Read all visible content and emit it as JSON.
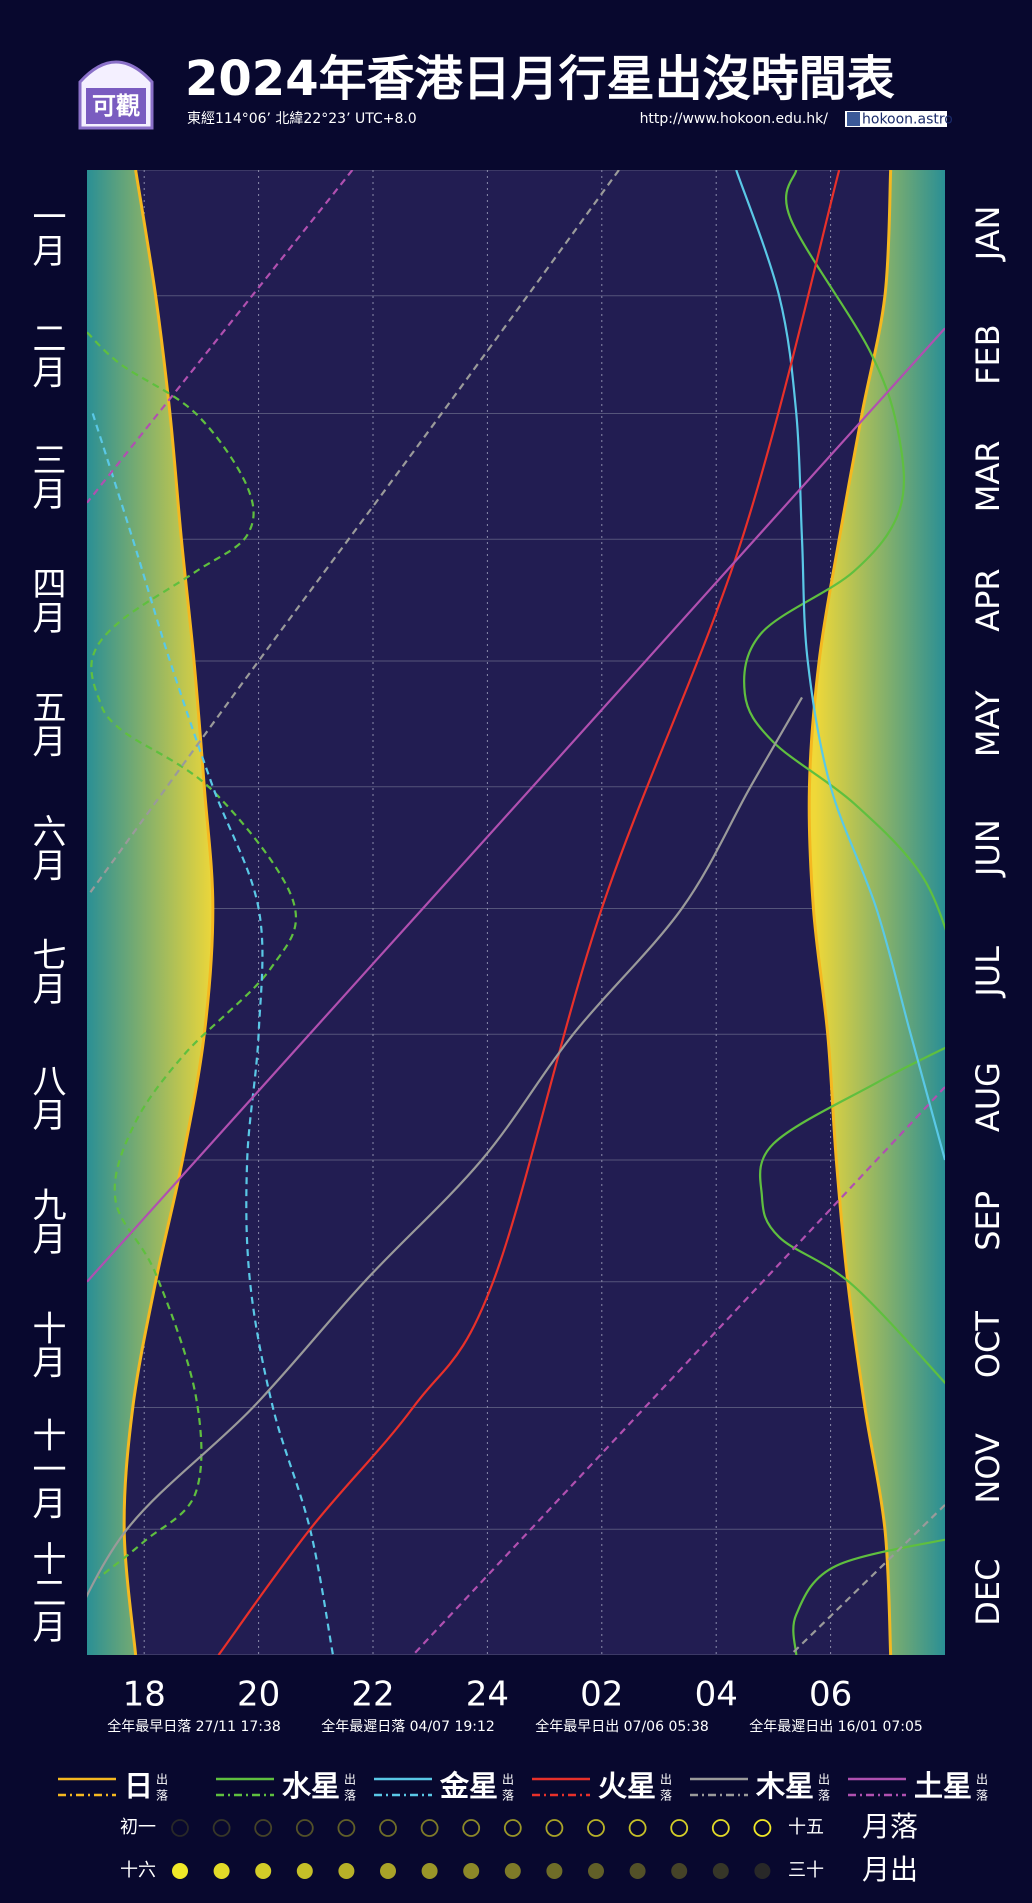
{
  "chart_data": {
    "type": "rise-set",
    "title": "2024年香港日月行星出沒時間表",
    "subtitle": "東經114°06’ 北緯22°23’ UTC+8.0",
    "url": "http://www.hokoon.edu.hk/",
    "facebook": "hokoon.astro",
    "logo_text": "可觀",
    "months_zh": [
      "一月",
      "二月",
      "三月",
      "四月",
      "五月",
      "六月",
      "七月",
      "八月",
      "九月",
      "十月",
      "十一月",
      "十二月"
    ],
    "months_en": [
      "JAN",
      "FEB",
      "MAR",
      "APR",
      "MAY",
      "JUN",
      "JUL",
      "AUG",
      "SEP",
      "OCT",
      "NOV",
      "DEC"
    ],
    "xlim": [
      17,
      32
    ],
    "xticks": [
      18,
      20,
      22,
      24,
      {
        "value": 26,
        "label": "02"
      },
      {
        "value": 28,
        "label": "04"
      },
      {
        "value": 30,
        "label": "06"
      }
    ],
    "ylim": [
      0,
      366
    ],
    "yticks": [
      0,
      31,
      60,
      91,
      121,
      152,
      182,
      213,
      244,
      274,
      305,
      335,
      366
    ],
    "notes": [
      "全年最早日落 27/11 17:38",
      "全年最遲日落 04/07 19:12",
      "全年最早日出 07/06 05:38",
      "全年最遲日出 16/01 07:05"
    ],
    "rise_label": "出",
    "set_label": "落",
    "series": [
      {
        "name": "日",
        "color": "#f5b820",
        "rise": {
          "days": [
            0,
            31,
            60,
            91,
            121,
            152,
            182,
            213,
            244,
            274,
            305,
            335,
            366
          ],
          "hours": [
            31.05,
            30.95,
            30.55,
            30.15,
            29.8,
            29.63,
            29.7,
            29.95,
            30.1,
            30.3,
            30.6,
            30.95,
            31.05
          ]
        },
        "set": {
          "days": [
            0,
            31,
            60,
            91,
            121,
            152,
            182,
            213,
            244,
            274,
            305,
            335,
            366
          ],
          "hours": [
            17.85,
            18.2,
            18.45,
            18.65,
            18.87,
            19.05,
            19.2,
            19.05,
            18.67,
            18.2,
            17.8,
            17.65,
            17.85
          ]
        }
      },
      {
        "name": "水星",
        "color": "#5fbf3f",
        "rise": {
          "days": [
            0,
            12,
            45,
            66,
            84,
            99,
            114,
            129,
            141,
            156,
            174,
            195,
            205,
            215,
            225,
            240,
            253,
            263,
            275,
            302,
            320,
            337,
            344,
            356,
            366
          ],
          "hours": [
            29.4,
            29.3,
            30.7,
            31.2,
            31.2,
            30.4,
            28.8,
            28.5,
            29,
            30.4,
            31.6,
            32.2,
            null,
            32.2,
            30.8,
            29.0,
            28.8,
            29.1,
            30.4,
            32.2,
            null,
            32.2,
            30.1,
            29.4,
            29.4
          ]
        },
        "set": {
          "days": [
            40,
            48,
            60,
            78,
            90,
            99,
            111,
            120,
            130,
            138,
            153,
            180,
            197,
            218,
            236,
            254,
            272,
            302,
            326,
            338,
            347
          ],
          "hours": [
            17.0,
            17.6,
            18.9,
            19.8,
            19.8,
            18.9,
            17.6,
            17.1,
            17.2,
            17.6,
            19.2,
            20.6,
            20.2,
            18.7,
            17.8,
            17.5,
            18.2,
            18.9,
            18.9,
            18.0,
            17.2
          ]
        }
      },
      {
        "name": "金星",
        "color": "#5ac8e6",
        "rise": {
          "days": [
            0,
            31,
            60,
            91,
            121,
            152,
            182,
            213,
            244
          ],
          "hours": [
            28.35,
            29.1,
            29.4,
            29.5,
            29.6,
            30.0,
            30.8,
            31.4,
            32
          ]
        },
        "set": {
          "days": [
            60,
            91,
            121,
            152,
            182,
            213,
            244,
            274,
            305,
            335,
            366
          ],
          "hours": [
            17.1,
            17.8,
            18.45,
            19.2,
            20.0,
            20.0,
            19.8,
            19.85,
            20.25,
            20.9,
            21.3
          ]
        }
      },
      {
        "name": "火星",
        "color": "#e8302a",
        "rise": {
          "days": [
            0,
            91,
            182,
            274,
            305,
            335,
            366
          ],
          "hours": [
            30.15,
            28.45,
            26.0,
            24.1,
            22.7,
            20.9,
            19.3
          ]
        }
      },
      {
        "name": "木星",
        "color": "#9a9a9a",
        "rise": {
          "days": [
            130,
            152,
            182,
            213,
            244,
            274,
            305,
            335,
            366
          ],
          "hours": [
            29.5,
            28.6,
            27.4,
            25.5,
            23.9,
            21.85,
            19.9,
            17.7,
            16.5
          ]
        },
        "set": {
          "days": [
            0,
            60,
            121,
            178,
            250,
            329,
            366
          ],
          "hours": [
            26.3,
            23.2,
            20.0,
            17.06,
            null,
            32,
            29.3
          ]
        }
      },
      {
        "name": "土星",
        "color": "#b050b0",
        "rise": {
          "days": [
            39,
            91,
            152,
            213,
            274
          ],
          "hours": [
            32,
            28.68,
            24.79,
            20.89,
            17.0
          ]
        },
        "set": {
          "days": [
            0,
            82,
            150,
            226,
            366
          ],
          "hours": [
            21.64,
            17.0,
            null,
            32,
            22.7
          ]
        }
      }
    ],
    "moon": {
      "first": "初一",
      "fifteenth": "十五",
      "set": "月落",
      "sixteenth": "十六",
      "thirtieth": "三十",
      "rise": "月出"
    }
  }
}
